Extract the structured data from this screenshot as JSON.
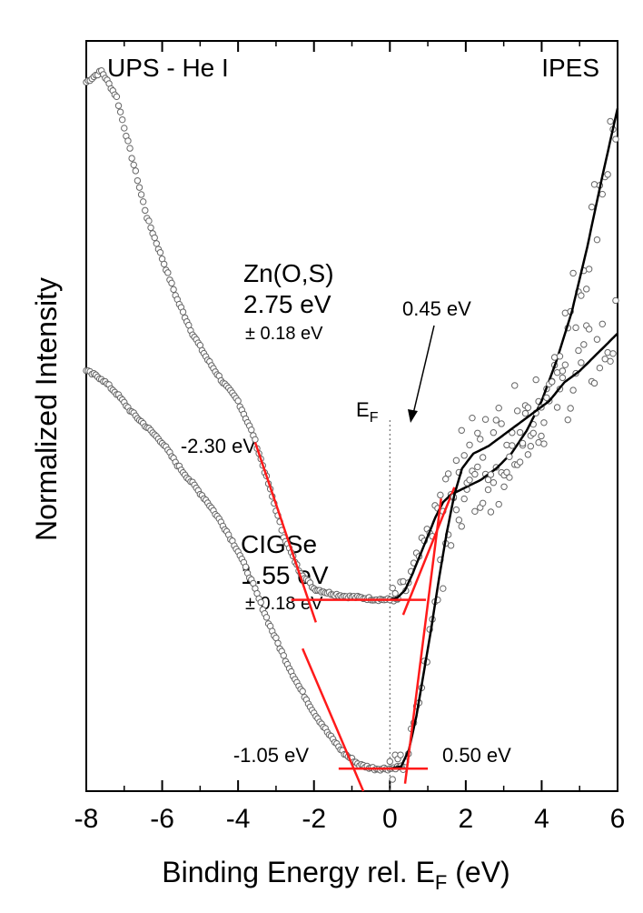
{
  "chart_data": {
    "type": "scatter",
    "title": "",
    "xlabel": "Binding Energy rel. E",
    "xlabel_sub": "F",
    "xlabel_unit": " (eV)",
    "ylabel": "Normalized Intensity",
    "xlim": [
      -8,
      6
    ],
    "x_ticks": [
      -8,
      -6,
      -4,
      -2,
      0,
      2,
      4,
      6
    ],
    "x_tick_labels": [
      "-8",
      "-6",
      "-4",
      "-2",
      "0",
      "2",
      "4",
      "6"
    ],
    "y_ticks_shown": false,
    "grid": false,
    "panel_labels": {
      "left": "UPS - He I",
      "right": "IPES"
    },
    "fermi_label": "E",
    "fermi_label_sub": "F",
    "fermi_x": 0,
    "series": [
      {
        "name": "Zn(O,S)",
        "gap_label": "2.75 eV",
        "gap_error": "± 0.18 eV",
        "vbm_label": "-2.30 eV",
        "vbm": -2.3,
        "cbm_label": "0.45 eV",
        "cbm": 0.45,
        "ups_x": [
          -8.0,
          -7.6,
          -7.2,
          -6.8,
          -6.4,
          -6.0,
          -5.6,
          -5.2,
          -4.8,
          -4.4,
          -4.0,
          -3.6,
          -3.2,
          -2.8,
          -2.4,
          -2.0,
          -1.6,
          -1.2,
          -0.8,
          -0.4,
          0.0,
          0.2
        ],
        "ups_y": [
          9.45,
          9.6,
          9.25,
          8.45,
          7.65,
          7.1,
          6.55,
          6.1,
          5.75,
          5.45,
          5.2,
          4.75,
          4.1,
          3.4,
          2.95,
          2.7,
          2.64,
          2.6,
          2.58,
          2.56,
          2.55,
          2.55
        ],
        "ipes_x": [
          0.0,
          0.2,
          0.4,
          0.6,
          0.8,
          1.0,
          1.2,
          1.4,
          1.6,
          1.8,
          2.0,
          2.4,
          2.8,
          3.2,
          3.6,
          4.0,
          4.4,
          4.8,
          5.2,
          5.6,
          6.0
        ],
        "ipes_y": [
          2.55,
          2.58,
          2.68,
          2.9,
          3.15,
          3.4,
          3.65,
          3.85,
          3.95,
          4.0,
          4.05,
          4.15,
          4.3,
          4.5,
          4.8,
          5.2,
          5.75,
          6.4,
          7.25,
          8.2,
          9.1
        ]
      },
      {
        "name": "CIGSe",
        "gap_label": "1.55 eV",
        "gap_error": "± 0.18 eV",
        "vbm_label": "-1.05 eV",
        "vbm": -1.05,
        "cbm_label": "0.50 eV",
        "cbm": 0.5,
        "ups_x": [
          -8.0,
          -7.6,
          -7.2,
          -6.8,
          -6.4,
          -6.0,
          -5.6,
          -5.2,
          -4.8,
          -4.4,
          -4.0,
          -3.6,
          -3.2,
          -2.8,
          -2.4,
          -2.0,
          -1.6,
          -1.2,
          -0.8,
          -0.4,
          0.0,
          0.3
        ],
        "ups_y": [
          5.6,
          5.5,
          5.3,
          5.05,
          4.85,
          4.65,
          4.35,
          4.1,
          3.85,
          3.55,
          3.2,
          2.75,
          2.25,
          1.8,
          1.4,
          1.05,
          0.75,
          0.5,
          0.35,
          0.3,
          0.3,
          0.33
        ],
        "ipes_x": [
          0.0,
          0.3,
          0.5,
          0.7,
          0.9,
          1.1,
          1.3,
          1.5,
          1.7,
          1.9,
          2.2,
          2.6,
          3.0,
          3.4,
          3.8,
          4.2,
          4.6,
          5.0,
          5.4,
          5.8,
          6.0
        ],
        "ipes_y": [
          0.3,
          0.33,
          0.55,
          1.0,
          1.6,
          2.2,
          2.85,
          3.45,
          3.95,
          4.3,
          4.5,
          4.6,
          4.75,
          4.9,
          5.05,
          5.2,
          5.45,
          5.6,
          5.8,
          6.0,
          6.1
        ]
      }
    ]
  }
}
